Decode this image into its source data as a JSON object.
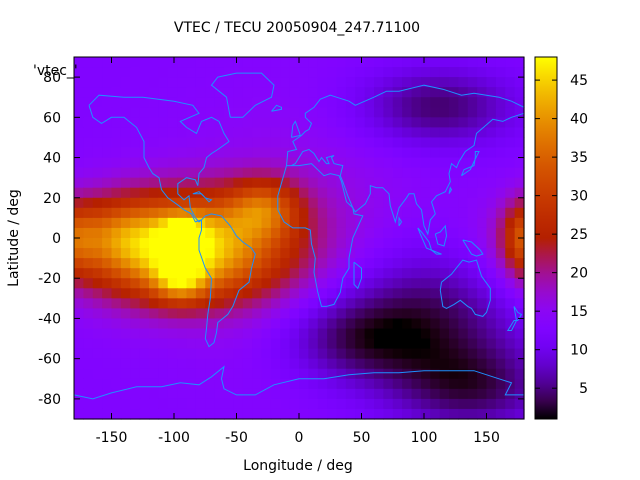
{
  "chart_data": {
    "type": "heatmap",
    "title": "VTEC / TECU 20050904_247.71100",
    "xlabel": "Longitude / deg",
    "ylabel": "Latitude / deg",
    "key_title": "'vtec_'",
    "xlim": [
      -180,
      180
    ],
    "ylim": [
      -90,
      90
    ],
    "x_ticks": [
      -150,
      -100,
      -50,
      0,
      50,
      100,
      150
    ],
    "y_ticks": [
      -80,
      -60,
      -40,
      -20,
      0,
      20,
      40,
      60,
      80
    ],
    "colorbar": {
      "min": 1,
      "max": 48,
      "ticks": [
        5,
        10,
        15,
        20,
        25,
        30,
        35,
        40,
        45
      ]
    },
    "grid_step_deg": [
      7.5,
      5
    ],
    "features": [
      {
        "lon": -95,
        "lat": -5,
        "amp": 34,
        "slon": 55,
        "slat": 18
      },
      {
        "lon": -95,
        "lat": -20,
        "amp": 14,
        "slon": 14,
        "slat": 8
      },
      {
        "lon": -93,
        "lat": 2,
        "amp": 12,
        "slon": 12,
        "slat": 6
      },
      {
        "lon": -28,
        "lat": 15,
        "amp": 14,
        "slon": 20,
        "slat": 10
      },
      {
        "lon": -150,
        "lat": 2,
        "amp": 7,
        "slon": 25,
        "slat": 12
      },
      {
        "lon": 180,
        "lat": 0,
        "amp": 10,
        "slon": 12,
        "slat": 12
      },
      {
        "lon": 0,
        "lat": 0,
        "amp": 4,
        "slon": 70,
        "slat": 45
      }
    ],
    "depletions": [
      {
        "lon": 100,
        "lat": -40,
        "amp": 10,
        "slon": 55,
        "slat": 25
      },
      {
        "lon": 110,
        "lat": 65,
        "amp": 9,
        "slon": 45,
        "slat": 14
      },
      {
        "lon": 140,
        "lat": -75,
        "amp": 8,
        "slon": 45,
        "slat": 15
      },
      {
        "lon": 40,
        "lat": -50,
        "amp": 7,
        "slon": 40,
        "slat": 15
      }
    ],
    "base_value": 13,
    "coastline_color": "#1e90ff"
  }
}
